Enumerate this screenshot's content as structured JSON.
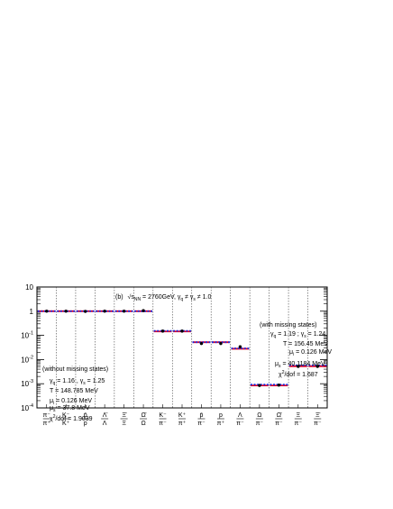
{
  "chart_data": {
    "type": "scatter",
    "title": "(b) √s_NN = 2760GeV, γ_q ≠ γ_s ≠ 1.0",
    "title_parts": {
      "panel": "(b)",
      "sqrt": "√s",
      "sub_nn": "NN",
      "energy": " = 2760GeV, ",
      "gq": "γ",
      "gq_sub": "q",
      "neq": " ≠ ",
      "gs": "γ",
      "gs_sub": "s",
      "rest": " ≠ 1.0"
    },
    "yscale": "log",
    "ylim": [
      0.0001,
      10
    ],
    "y_ticks": [
      {
        "base": "10",
        "exp": "-4",
        "value": 0.0001
      },
      {
        "base": "10",
        "exp": "-3",
        "value": 0.001
      },
      {
        "base": "10",
        "exp": "-2",
        "value": 0.01
      },
      {
        "base": "10",
        "exp": "-1",
        "value": 0.1
      },
      {
        "base": "1",
        "exp": "",
        "value": 1
      },
      {
        "base": "10",
        "exp": "",
        "value": 10
      }
    ],
    "categories": [
      {
        "num": "π⁻",
        "den": "π⁺"
      },
      {
        "num": "K⁻",
        "den": "K⁺"
      },
      {
        "num": "p̄",
        "den": "p"
      },
      {
        "num": "Λ̄",
        "den": "Λ"
      },
      {
        "num": "Ξ̄",
        "den": "Ξ"
      },
      {
        "num": "Ω̄",
        "den": "Ω"
      },
      {
        "num": "K⁻",
        "den": "π⁻"
      },
      {
        "num": "K⁺",
        "den": "π⁺"
      },
      {
        "num": "p̄",
        "den": "π⁻"
      },
      {
        "num": "p",
        "den": "π⁺"
      },
      {
        "num": "Λ",
        "den": "π⁻"
      },
      {
        "num": "Ω",
        "den": "π⁻"
      },
      {
        "num": "Ω̄",
        "den": "π⁻"
      },
      {
        "num": "Ξ",
        "den": "π⁻"
      },
      {
        "num": "Ξ̄",
        "den": "π⁻"
      }
    ],
    "series": [
      {
        "values": [
          1.0,
          1.0,
          0.98,
          1.0,
          1.0,
          1.05,
          0.15,
          0.15,
          0.046,
          0.046,
          0.034,
          0.00085,
          0.00088,
          0.0052,
          0.0052
        ]
      },
      {
        "values": [
          1.0,
          1.0,
          1.0,
          1.0,
          1.0,
          1.0,
          0.145,
          0.145,
          0.052,
          0.052,
          0.028,
          0.00085,
          0.00085,
          0.0053,
          0.0053
        ]
      },
      {
        "values": [
          1.0,
          1.0,
          1.0,
          1.0,
          1.0,
          1.0,
          0.153,
          0.153,
          0.052,
          0.052,
          0.029,
          0.00092,
          0.00092,
          0.0058,
          0.0058
        ]
      }
    ],
    "annotations": {
      "without": {
        "header": "(without missing states)",
        "gq": "γ",
        "gq_sub": "q",
        "gq_val": " = 1.16 ,  ",
        "gs": "γ",
        "gs_sub": "s",
        "gs_val": " = 1.25",
        "T": "T = 148.785 MeV",
        "mu_i": "μ",
        "mu_i_sub": "i",
        "mu_i_val": " = 0.126 MeV",
        "mu_s": "μ",
        "mu_s_sub": "s",
        "mu_s_val": " = 37.8 MeV",
        "chi": "χ",
        "chi_exp": "2",
        "chi_val": "/dof = 1.9039"
      },
      "with": {
        "header": "(with missing states)",
        "gq": "γ",
        "gq_sub": "q",
        "gq_val": " = 1.19 ;  ",
        "gs": "γ",
        "gs_sub": "s",
        "gs_val": " = 1.24",
        "T": "T = 156.45 MeV",
        "mu_i": "μ",
        "mu_i_sub": "i",
        "mu_i_val": " = 0.126 MeV",
        "mu_s": "μ",
        "mu_s_sub": "s",
        "mu_s_val": " = 40.1184 MeV",
        "chi": "χ",
        "chi_exp": "2",
        "chi_val": "/dof = 1.687"
      }
    },
    "colors": {
      "data": "#000000",
      "red": "#e8001c",
      "blue": "#1f2fe0",
      "grid": "#444444",
      "frame": "#000000"
    }
  }
}
